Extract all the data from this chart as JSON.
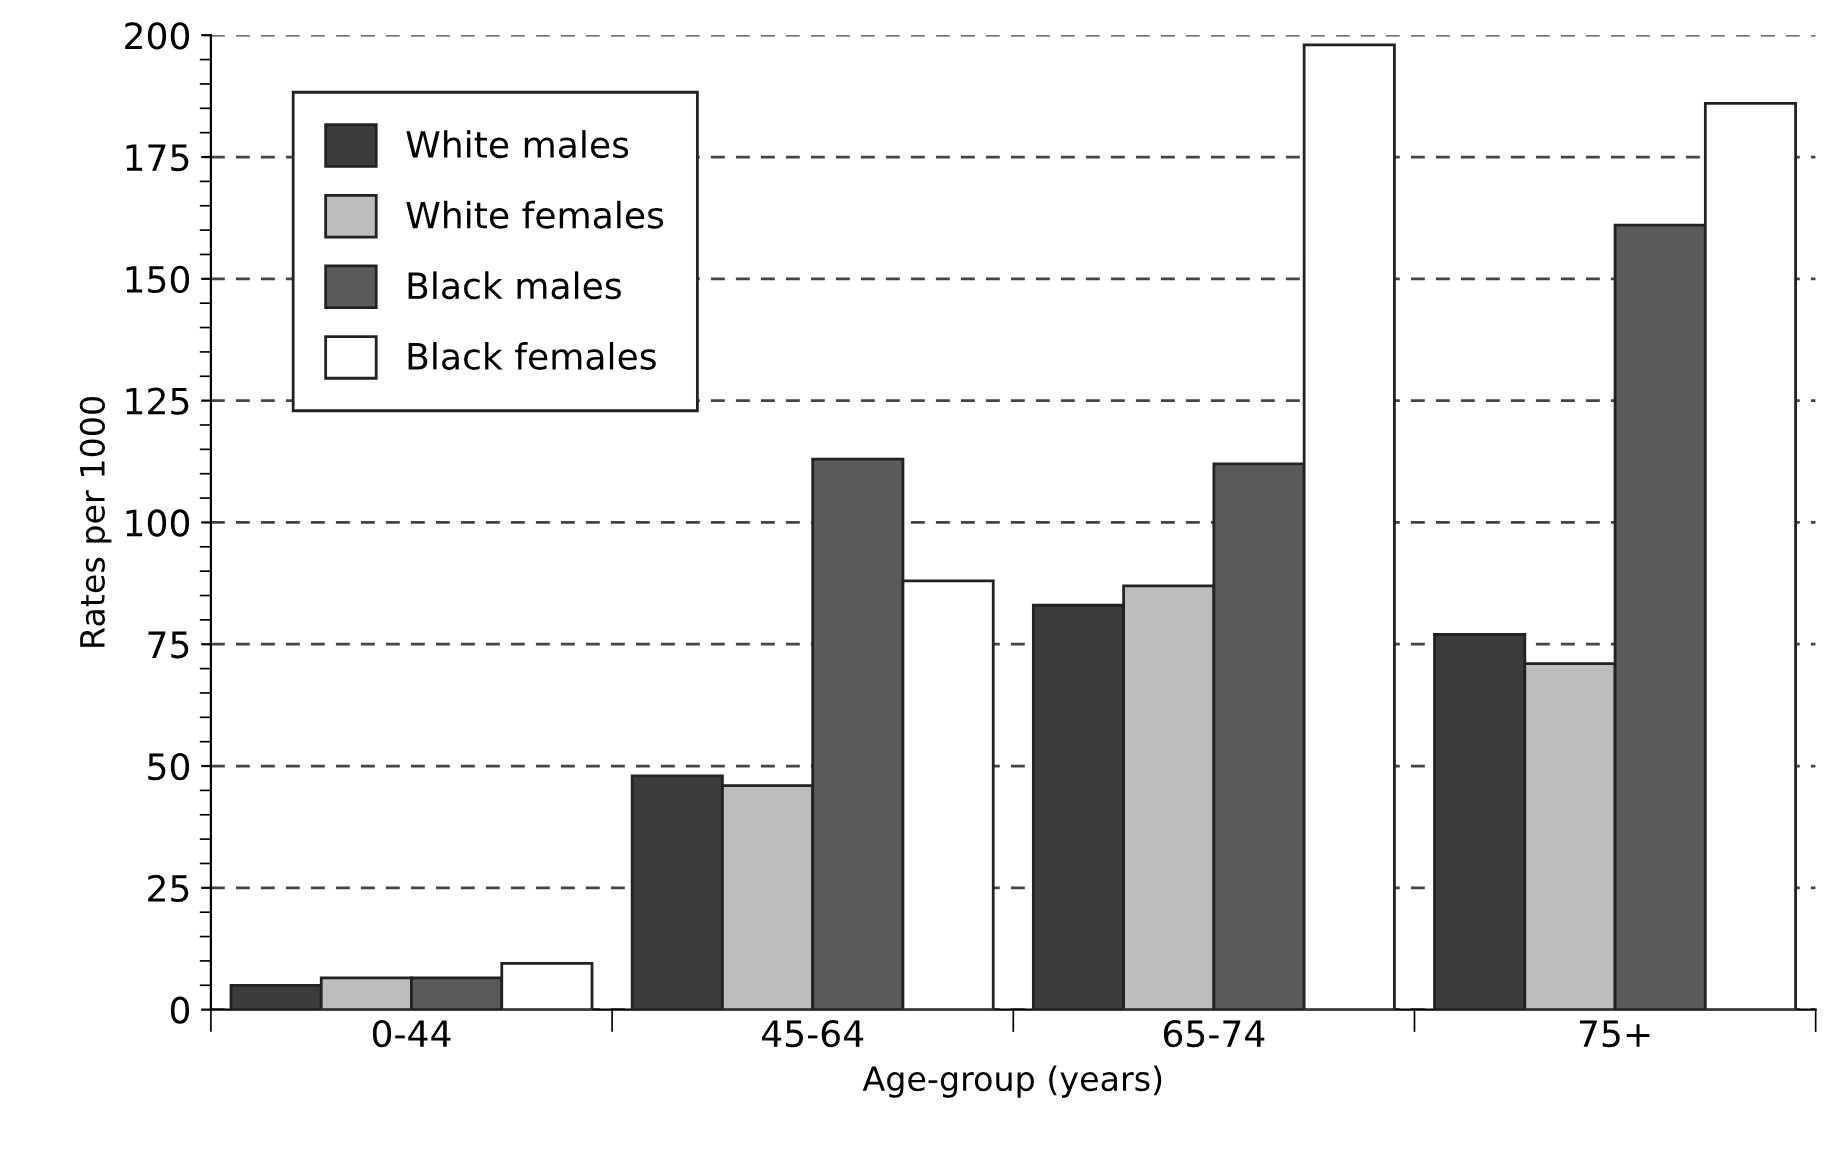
{
  "chart_data": {
    "type": "bar",
    "xlabel": "Age-group (years)",
    "ylabel": "Rates per 1000",
    "categories": [
      "0-44",
      "45-64",
      "65-74",
      "75+"
    ],
    "series": [
      {
        "name": "White males",
        "color": "#3c3c3c",
        "values": [
          5,
          48,
          83,
          77
        ]
      },
      {
        "name": "White females",
        "color": "#bdbdbd",
        "values": [
          6.5,
          46,
          87,
          71
        ]
      },
      {
        "name": "Black males",
        "color": "#5a5a5a",
        "values": [
          6.5,
          113,
          112,
          161
        ]
      },
      {
        "name": "Black females",
        "color": "#ffffff",
        "values": [
          9.5,
          88,
          198,
          186
        ]
      }
    ],
    "ylim": [
      0,
      200
    ],
    "yticks": [
      0,
      25,
      50,
      75,
      100,
      125,
      150,
      175,
      200
    ],
    "grid": "y",
    "legend": "top left"
  }
}
